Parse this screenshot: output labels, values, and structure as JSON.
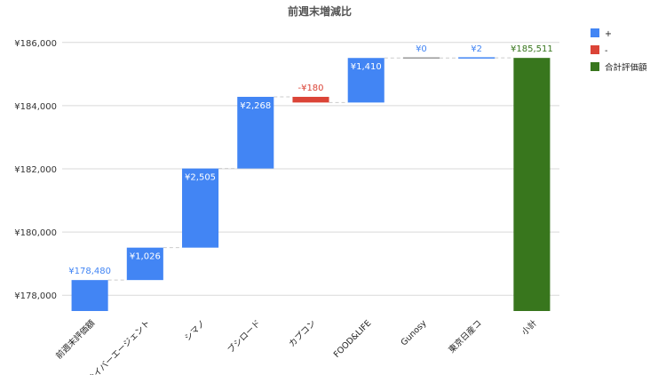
{
  "chart_data": {
    "type": "bar",
    "subtype": "waterfall",
    "title": "前週末増減比",
    "categories": [
      "前週末評価額",
      "サイバーエージェント",
      "シマノ",
      "ブシロード",
      "カプコン",
      "FOOD&LIFE",
      "Gunosy",
      "東京日産コ",
      "小計"
    ],
    "values": [
      178480,
      1026,
      2505,
      2268,
      -180,
      1410,
      0,
      2,
      185511
    ],
    "kinds": [
      "total",
      "delta",
      "delta",
      "delta",
      "delta",
      "delta",
      "delta",
      "delta",
      "total"
    ],
    "data_labels": [
      "¥178,480",
      "¥1,026",
      "¥2,505",
      "¥2,268",
      "-¥180",
      "¥1,410",
      "¥0",
      "¥2",
      "¥185,511"
    ],
    "ylim": [
      177500,
      186500
    ],
    "yticks": [
      178000,
      180000,
      182000,
      184000,
      186000
    ],
    "ytick_labels": [
      "¥178,000",
      "¥180,000",
      "¥182,000",
      "¥184,000",
      "¥186,000"
    ],
    "grid": true,
    "legend_position": "right",
    "legend": [
      {
        "label": "+",
        "color": "#4285f4"
      },
      {
        "label": "-",
        "color": "#db4437"
      },
      {
        "label": "合計評価額",
        "color": "#38761d"
      }
    ],
    "colors": {
      "increase": "#4285f4",
      "decrease": "#db4437",
      "total": "#38761d",
      "initial": "#4285f4"
    }
  }
}
